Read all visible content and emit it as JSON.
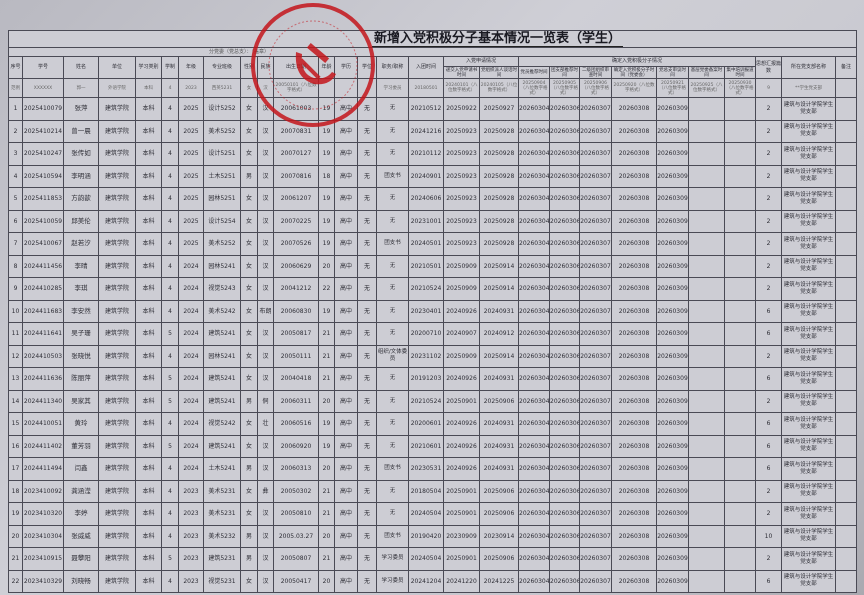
{
  "title": "新增入党积极分子基本情况一览表（学生）",
  "subtitle": "分党委（党总支）：（盖章）",
  "stamp_color": "#c4161c",
  "headers": {
    "seq": "序号",
    "sid": "学号",
    "name": "姓名",
    "unit": "单位",
    "type": "学习类别",
    "years": "学制",
    "grade": "年级",
    "cls": "专业班级",
    "sex": "性别",
    "eth": "民族",
    "birth": "出生日期",
    "age": "年龄",
    "edu": "学历",
    "degree": "学位",
    "post": "职务/职称",
    "league": "入团时间",
    "apply_group": "入党申请情况",
    "apply": "递交入党申请书时间",
    "talk": "党组织派人谈话时间",
    "activist_group": "确定入党积极分子情况",
    "rec_member": "党员推荐时间",
    "rec_league": "团支部推荐时间",
    "review": "二级团组织审查时间",
    "confirm": "确定入党积极分子时间（党委会）",
    "branch_review": "党总支审议时间",
    "filing": "基层党委备案时间",
    "training": "集中培训报道时间",
    "reports": "思想汇报篇数",
    "branch": "所在党支部名称",
    "remark": "备注"
  },
  "example": [
    "范例",
    "XXXXXX",
    "郭一",
    "外语学院",
    "本科",
    "4",
    "2023",
    "西英5231",
    "女",
    "汉",
    "20050101（八位数字格式）",
    "",
    "",
    "",
    "学习委员",
    "20180501",
    "20240101（八位数字格式）",
    "20240105（八位数字格式）",
    "20250904（八位数字格式）",
    "20250905（八位数字格式）",
    "20250906（八位数字格式）",
    "20250920（八位数字格式）",
    "20250921（八位数字格式）",
    "20250925（八位数字格式）",
    "20250930（八位数字格式）",
    "9",
    "**学生党支部",
    ""
  ],
  "rows": [
    [
      "1",
      "2025410079",
      "张萍",
      "建筑学院",
      "本科",
      "4",
      "2025",
      "设计5252",
      "女",
      "汉",
      "20061003",
      "19",
      "高中",
      "无",
      "无",
      "20210512",
      "20250922",
      "20250927",
      "20260304",
      "20260306",
      "20260307",
      "20260308",
      "20260309",
      "",
      "",
      "2",
      "建筑与设计学院学生党支部",
      ""
    ],
    [
      "2",
      "2025410214",
      "曾一晨",
      "建筑学院",
      "本科",
      "4",
      "2025",
      "美术5252",
      "女",
      "汉",
      "20070831",
      "19",
      "高中",
      "无",
      "无",
      "20241216",
      "20250923",
      "20250928",
      "20260304",
      "20260306",
      "20260307",
      "20260308",
      "20260309",
      "",
      "",
      "2",
      "建筑与设计学院学生党支部",
      ""
    ],
    [
      "3",
      "2025410247",
      "张传如",
      "建筑学院",
      "本科",
      "4",
      "2025",
      "设计5251",
      "女",
      "汉",
      "20070127",
      "19",
      "高中",
      "无",
      "无",
      "20210112",
      "20250923",
      "20250928",
      "20260304",
      "20260306",
      "20260307",
      "20260308",
      "20260309",
      "",
      "",
      "2",
      "建筑与设计学院学生党支部",
      ""
    ],
    [
      "4",
      "2025410594",
      "李明涵",
      "建筑学院",
      "本科",
      "4",
      "2025",
      "土木5251",
      "男",
      "汉",
      "20070816",
      "18",
      "高中",
      "无",
      "团支书",
      "20240901",
      "20250923",
      "20250928",
      "20260304",
      "20260306",
      "20260307",
      "20260308",
      "20260309",
      "",
      "",
      "2",
      "建筑与设计学院学生党支部",
      ""
    ],
    [
      "5",
      "2025411853",
      "方韵歆",
      "建筑学院",
      "本科",
      "4",
      "2025",
      "园林5251",
      "女",
      "汉",
      "20061207",
      "19",
      "高中",
      "无",
      "无",
      "20240606",
      "20250923",
      "20250928",
      "20260304",
      "20260306",
      "20260307",
      "20260308",
      "20260309",
      "",
      "",
      "2",
      "建筑与设计学院学生党支部",
      ""
    ],
    [
      "6",
      "2025410059",
      "邱美伦",
      "建筑学院",
      "本科",
      "4",
      "2025",
      "设计5254",
      "女",
      "汉",
      "20070225",
      "19",
      "高中",
      "无",
      "无",
      "20231001",
      "20250923",
      "20250928",
      "20260304",
      "20260306",
      "20260307",
      "20260308",
      "20260309",
      "",
      "",
      "2",
      "建筑与设计学院学生党支部",
      ""
    ],
    [
      "7",
      "2025410067",
      "赵若汐",
      "建筑学院",
      "本科",
      "4",
      "2025",
      "美术5252",
      "女",
      "汉",
      "20070526",
      "19",
      "高中",
      "无",
      "团支书",
      "20240501",
      "20250923",
      "20250928",
      "20260304",
      "20260306",
      "20260307",
      "20260308",
      "20260309",
      "",
      "",
      "2",
      "建筑与设计学院学生党支部",
      ""
    ],
    [
      "8",
      "2024411456",
      "李晴",
      "建筑学院",
      "本科",
      "4",
      "2024",
      "园林5241",
      "女",
      "汉",
      "20060629",
      "20",
      "高中",
      "无",
      "无",
      "20210501",
      "20250909",
      "20250914",
      "20260304",
      "20260306",
      "20260307",
      "20260308",
      "20260309",
      "",
      "",
      "2",
      "建筑与设计学院学生党支部",
      ""
    ],
    [
      "9",
      "2024410285",
      "李琪",
      "建筑学院",
      "本科",
      "4",
      "2024",
      "视觉5243",
      "女",
      "汉",
      "20041212",
      "22",
      "高中",
      "无",
      "无",
      "20210524",
      "20250909",
      "20250914",
      "20260304",
      "20260306",
      "20260307",
      "20260308",
      "20260309",
      "",
      "",
      "2",
      "建筑与设计学院学生党支部",
      ""
    ],
    [
      "10",
      "2024411683",
      "李安然",
      "建筑学院",
      "本科",
      "4",
      "2024",
      "美术5242",
      "女",
      "布朗",
      "20060830",
      "19",
      "高中",
      "无",
      "无",
      "20230401",
      "20240926",
      "20240931",
      "20260304",
      "20260306",
      "20260307",
      "20260308",
      "20260309",
      "",
      "",
      "6",
      "建筑与设计学院学生党支部",
      ""
    ],
    [
      "11",
      "2024411641",
      "吴子珊",
      "建筑学院",
      "本科",
      "5",
      "2024",
      "建筑5241",
      "女",
      "汉",
      "20050817",
      "21",
      "高中",
      "无",
      "无",
      "20200710",
      "20240907",
      "20240912",
      "20260304",
      "20260306",
      "20260307",
      "20260308",
      "20260309",
      "",
      "",
      "6",
      "建筑与设计学院学生党支部",
      ""
    ],
    [
      "12",
      "2024410503",
      "张晓悦",
      "建筑学院",
      "本科",
      "4",
      "2024",
      "园林5241",
      "女",
      "汉",
      "20050111",
      "21",
      "高中",
      "无",
      "组织/文体委员",
      "20231102",
      "20250909",
      "20250914",
      "20260304",
      "20260306",
      "20260307",
      "20260308",
      "20260309",
      "",
      "",
      "2",
      "建筑与设计学院学生党支部",
      ""
    ],
    [
      "13",
      "2024411636",
      "陈丽萍",
      "建筑学院",
      "本科",
      "5",
      "2024",
      "建筑5241",
      "女",
      "汉",
      "20040418",
      "21",
      "高中",
      "无",
      "无",
      "20191203",
      "20240926",
      "20240931",
      "20260304",
      "20260306",
      "20260307",
      "20260308",
      "20260309",
      "",
      "",
      "6",
      "建筑与设计学院学生党支部",
      ""
    ],
    [
      "14",
      "2024411340",
      "吴家其",
      "建筑学院",
      "本科",
      "5",
      "2024",
      "建筑5241",
      "男",
      "侗",
      "20060311",
      "20",
      "高中",
      "无",
      "无",
      "20210524",
      "20250901",
      "20250906",
      "20260304",
      "20260306",
      "20260307",
      "20260308",
      "20260309",
      "",
      "",
      "2",
      "建筑与设计学院学生党支部",
      ""
    ],
    [
      "15",
      "2024410051",
      "黄玲",
      "建筑学院",
      "本科",
      "4",
      "2024",
      "视觉5242",
      "女",
      "壮",
      "20060516",
      "19",
      "高中",
      "无",
      "无",
      "20200601",
      "20240926",
      "20240931",
      "20260304",
      "20260306",
      "20260307",
      "20260308",
      "20260309",
      "",
      "",
      "6",
      "建筑与设计学院学生党支部",
      ""
    ],
    [
      "16",
      "2024411402",
      "董芳羽",
      "建筑学院",
      "本科",
      "5",
      "2024",
      "建筑5241",
      "女",
      "汉",
      "20060920",
      "19",
      "高中",
      "无",
      "无",
      "20210601",
      "20240926",
      "20240931",
      "20260304",
      "20260306",
      "20260307",
      "20260308",
      "20260309",
      "",
      "",
      "6",
      "建筑与设计学院学生党支部",
      ""
    ],
    [
      "17",
      "2024411494",
      "闫鑫",
      "建筑学院",
      "本科",
      "4",
      "2024",
      "土木5241",
      "男",
      "汉",
      "20060313",
      "20",
      "高中",
      "无",
      "团支书",
      "20230531",
      "20240926",
      "20240931",
      "20260304",
      "20260306",
      "20260307",
      "20260308",
      "20260309",
      "",
      "",
      "6",
      "建筑与设计学院学生党支部",
      ""
    ],
    [
      "18",
      "2023410092",
      "龚涵滢",
      "建筑学院",
      "本科",
      "4",
      "2023",
      "美术5231",
      "女",
      "彝",
      "20050302",
      "21",
      "高中",
      "无",
      "无",
      "20180504",
      "20250901",
      "20250906",
      "20260304",
      "20260306",
      "20260307",
      "20260308",
      "20260309",
      "",
      "",
      "2",
      "建筑与设计学院学生党支部",
      ""
    ],
    [
      "19",
      "2023410320",
      "李婷",
      "建筑学院",
      "本科",
      "4",
      "2023",
      "美术5231",
      "女",
      "汉",
      "20050810",
      "21",
      "高中",
      "无",
      "无",
      "20240504",
      "20250901",
      "20250906",
      "20260304",
      "20260306",
      "20260307",
      "20260308",
      "20260309",
      "",
      "",
      "2",
      "建筑与设计学院学生党支部",
      ""
    ],
    [
      "20",
      "2023410304",
      "张威威",
      "建筑学院",
      "本科",
      "4",
      "2023",
      "美术5232",
      "男",
      "汉",
      "2005.03.27",
      "20",
      "高中",
      "无",
      "团支书",
      "20190420",
      "20230909",
      "20230914",
      "20260304",
      "20260306",
      "20260307",
      "20260308",
      "20260309",
      "",
      "",
      "10",
      "建筑与设计学院学生党支部",
      ""
    ],
    [
      "21",
      "2023410915",
      "聂攀阳",
      "建筑学院",
      "本科",
      "5",
      "2023",
      "建筑5231",
      "男",
      "汉",
      "20050807",
      "21",
      "高中",
      "无",
      "学习委员",
      "20240504",
      "20250901",
      "20250906",
      "20260304",
      "20260306",
      "20260307",
      "20260308",
      "20260309",
      "",
      "",
      "2",
      "建筑与设计学院学生党支部",
      ""
    ],
    [
      "22",
      "2023410329",
      "刘晓畅",
      "建筑学院",
      "本科",
      "4",
      "2023",
      "视觉5231",
      "女",
      "汉",
      "20050417",
      "20",
      "高中",
      "无",
      "学习委员",
      "20241204",
      "20241220",
      "20241225",
      "20260304",
      "20260306",
      "20260307",
      "20260308",
      "20260309",
      "",
      "",
      "6",
      "建筑与设计学院学生党支部",
      ""
    ]
  ]
}
